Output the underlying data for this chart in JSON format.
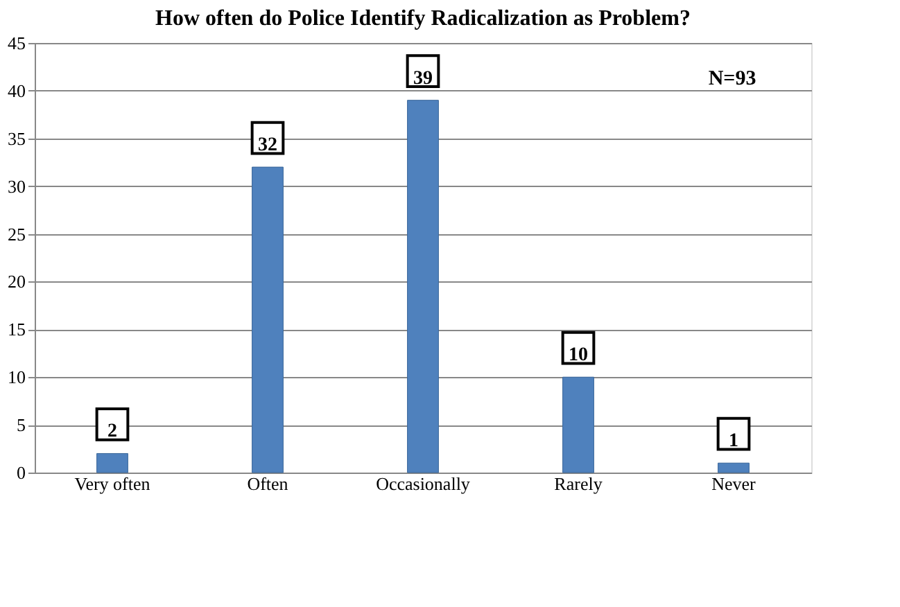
{
  "chart_data": {
    "type": "bar",
    "title": "How often do Police Identify Radicalization as Problem?",
    "categories": [
      "Very often",
      "Often",
      "Occasionally",
      "Rarely",
      "Never"
    ],
    "values": [
      2,
      32,
      39,
      10,
      1
    ],
    "color": "#4f81bd",
    "ylim": [
      0,
      45
    ],
    "yticks": [
      0,
      5,
      10,
      15,
      20,
      25,
      30,
      35,
      40,
      45
    ],
    "grid": "y",
    "data_labels": true,
    "annotations": [
      "N=93"
    ]
  }
}
